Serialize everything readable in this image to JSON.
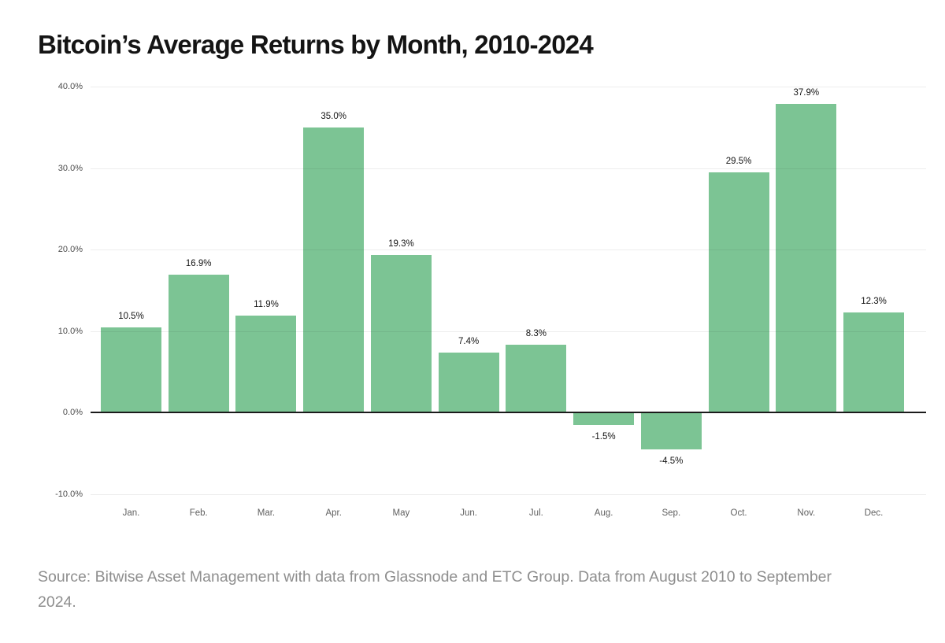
{
  "page": {
    "title": "Bitcoin’s Average Returns by Month, 2010-2024",
    "source": "Source: Bitwise Asset Management with data from Glassnode and ETC Group. Data from August 2010 to September 2024."
  },
  "chart_data": {
    "type": "bar",
    "title": "Bitcoin’s Average Returns by Month, 2010-2024",
    "categories": [
      "Jan.",
      "Feb.",
      "Mar.",
      "Apr.",
      "May",
      "Jun.",
      "Jul.",
      "Aug.",
      "Sep.",
      "Oct.",
      "Nov.",
      "Dec."
    ],
    "values": [
      10.5,
      16.9,
      11.9,
      35.0,
      19.3,
      7.4,
      8.3,
      -1.5,
      -4.5,
      29.5,
      37.9,
      12.3
    ],
    "value_labels": [
      "10.5%",
      "16.9%",
      "11.9%",
      "35.0%",
      "19.3%",
      "7.4%",
      "8.3%",
      "-1.5%",
      "-4.5%",
      "29.5%",
      "37.9%",
      "12.3%"
    ],
    "xlabel": "",
    "ylabel": "",
    "ylim": [
      -10,
      40
    ],
    "y_ticks": [
      40,
      30,
      20,
      10,
      0,
      -10
    ],
    "y_tick_labels": [
      "40.0%",
      "30.0%",
      "20.0%",
      "10.0%",
      "0.0%",
      "-10.0%"
    ],
    "grid": true,
    "legend": "none",
    "bar_color": "#7cc494",
    "zero_line_color": "#1b1b1b"
  }
}
